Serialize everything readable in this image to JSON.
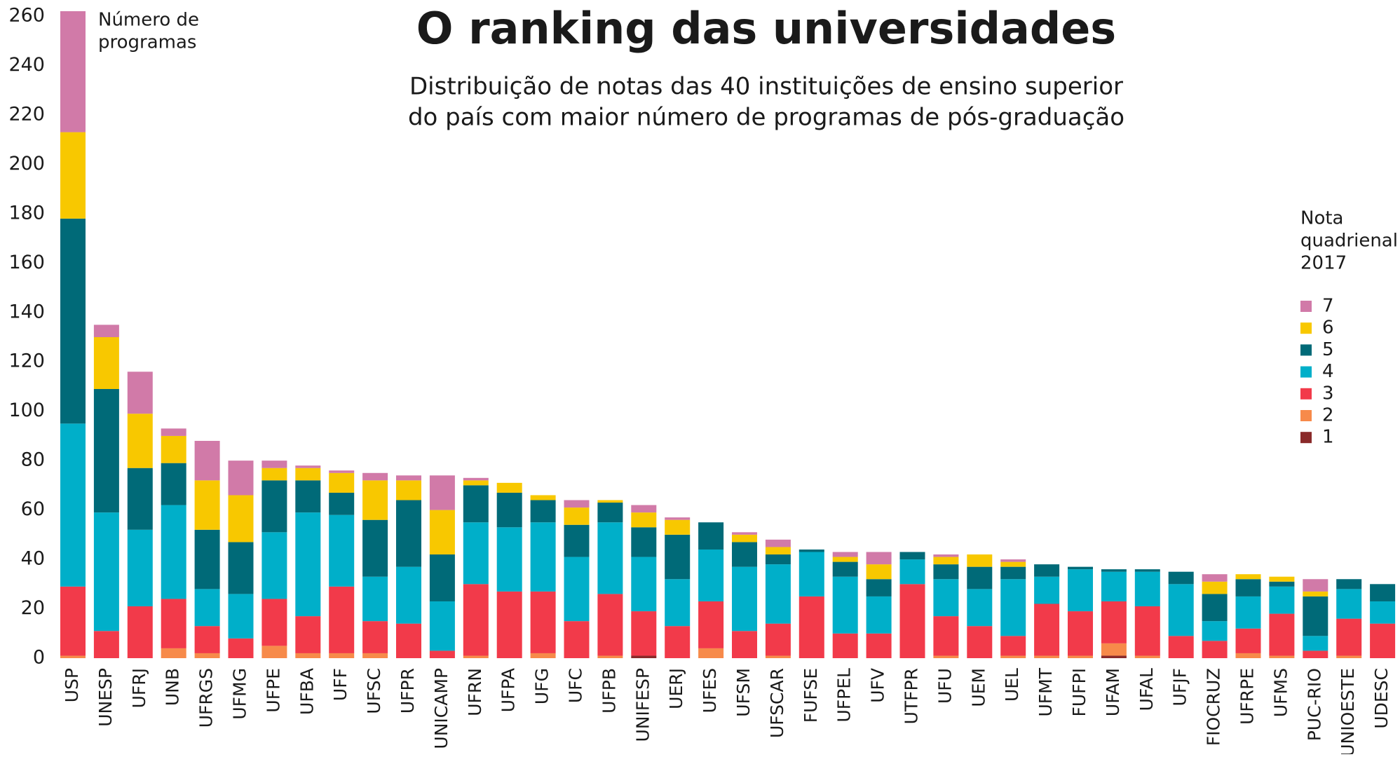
{
  "chart_data": {
    "type": "stacked_bar",
    "title": "O ranking das universidades",
    "subtitle": [
      "Distribuição de notas das 40 instituições de ensino superior",
      "do país com maior número de programas de pós-graduação"
    ],
    "y_label": [
      "Número de",
      "programas"
    ],
    "legend_title": [
      "Nota",
      "quadrienal",
      "2017"
    ],
    "legend_position": "right",
    "ylim": [
      0,
      260
    ],
    "yticks": [
      0,
      20,
      40,
      60,
      80,
      100,
      120,
      140,
      160,
      180,
      200,
      220,
      240,
      260
    ],
    "categories": [
      "USP",
      "UNESP",
      "UFRJ",
      "UNB",
      "UFRGS",
      "UFMG",
      "UFPE",
      "UFBA",
      "UFF",
      "UFSC",
      "UFPR",
      "UNICAMP",
      "UFRN",
      "UFPA",
      "UFG",
      "UFC",
      "UFPB",
      "UNIFESP",
      "UERJ",
      "UFES",
      "UFSM",
      "UFSCAR",
      "FUFSE",
      "UFPEL",
      "UFV",
      "UTFPR",
      "UFU",
      "UEM",
      "UEL",
      "UFMT",
      "FUFPI",
      "UFAM",
      "UFAL",
      "UFJF",
      "FIOCRUZ",
      "UFRPE",
      "UFMS",
      "PUC-RIO",
      "UNIOESTE",
      "UDESC"
    ],
    "series": [
      {
        "name": "1",
        "color": "#8a2a2a",
        "values": [
          0,
          0,
          0,
          0,
          0,
          0,
          0,
          0,
          0,
          0,
          0,
          0,
          0,
          0,
          0,
          0,
          0,
          1,
          0,
          0,
          0,
          0,
          0,
          0,
          0,
          0,
          0,
          0,
          0,
          0,
          0,
          1,
          0,
          0,
          0,
          0,
          0,
          0,
          0,
          0
        ]
      },
      {
        "name": "2",
        "color": "#f78a4a",
        "values": [
          1,
          0,
          0,
          4,
          2,
          0,
          5,
          2,
          2,
          2,
          0,
          0,
          1,
          0,
          2,
          0,
          1,
          0,
          0,
          4,
          0,
          1,
          0,
          0,
          0,
          0,
          1,
          0,
          1,
          1,
          1,
          5,
          1,
          0,
          0,
          2,
          1,
          0,
          1,
          0
        ]
      },
      {
        "name": "3",
        "color": "#f23a4a",
        "values": [
          28,
          11,
          21,
          20,
          11,
          8,
          19,
          15,
          27,
          13,
          14,
          3,
          29,
          27,
          25,
          15,
          25,
          18,
          13,
          19,
          11,
          13,
          25,
          10,
          10,
          30,
          16,
          13,
          8,
          21,
          18,
          17,
          20,
          9,
          7,
          10,
          17,
          3,
          15,
          14
        ]
      },
      {
        "name": "4",
        "color": "#00afc9",
        "values": [
          66,
          48,
          31,
          38,
          15,
          18,
          27,
          42,
          29,
          18,
          23,
          20,
          25,
          26,
          28,
          26,
          29,
          22,
          19,
          21,
          26,
          24,
          18,
          23,
          15,
          10,
          15,
          15,
          23,
          11,
          17,
          12,
          14,
          21,
          8,
          13,
          11,
          6,
          12,
          9
        ]
      },
      {
        "name": "5",
        "color": "#006a78",
        "values": [
          83,
          50,
          25,
          17,
          24,
          21,
          21,
          13,
          9,
          23,
          27,
          19,
          15,
          14,
          9,
          13,
          8,
          12,
          18,
          11,
          10,
          4,
          1,
          6,
          7,
          3,
          6,
          9,
          5,
          5,
          1,
          1,
          1,
          5,
          11,
          7,
          2,
          16,
          4,
          7
        ]
      },
      {
        "name": "6",
        "color": "#f8c800",
        "values": [
          35,
          21,
          22,
          11,
          20,
          19,
          5,
          5,
          8,
          16,
          8,
          18,
          2,
          4,
          2,
          7,
          1,
          6,
          6,
          0,
          3,
          3,
          0,
          2,
          6,
          0,
          3,
          5,
          2,
          0,
          0,
          0,
          0,
          0,
          5,
          2,
          2,
          2,
          0,
          0
        ]
      },
      {
        "name": "7",
        "color": "#d17aa8",
        "values": [
          49,
          5,
          17,
          3,
          16,
          14,
          3,
          1,
          1,
          3,
          2,
          14,
          1,
          0,
          0,
          3,
          0,
          3,
          1,
          0,
          1,
          3,
          0,
          2,
          5,
          0,
          1,
          0,
          1,
          0,
          0,
          0,
          0,
          0,
          3,
          0,
          0,
          5,
          0,
          0
        ]
      }
    ]
  }
}
